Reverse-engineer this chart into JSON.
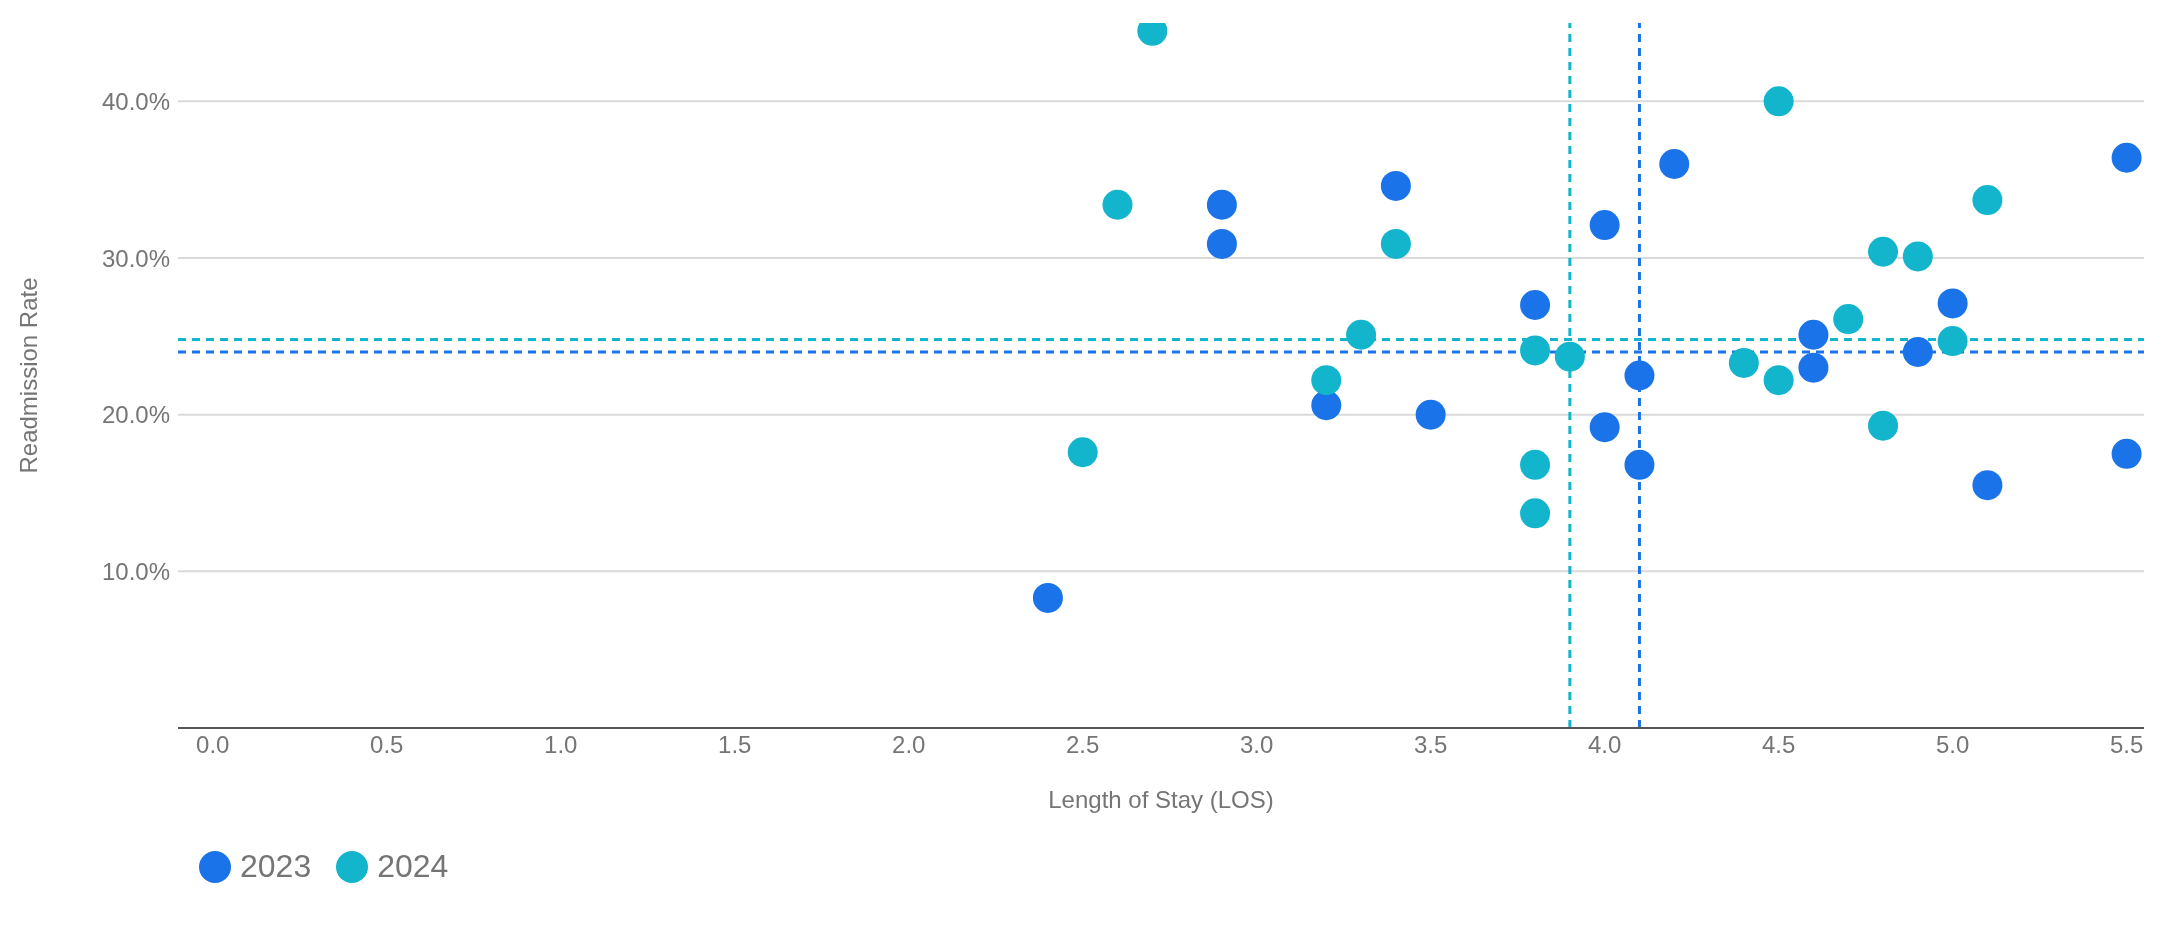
{
  "chart_data": {
    "type": "scatter",
    "xlabel": "Length of Stay (LOS)",
    "ylabel": "Readmission Rate",
    "series": [
      {
        "name": "2023",
        "color": "#1a73e8",
        "x": [
          2.4,
          2.9,
          2.9,
          3.2,
          3.4,
          3.5,
          3.8,
          4.0,
          4.0,
          4.1,
          4.1,
          4.2,
          4.6,
          4.6,
          4.9,
          5.0,
          5.1,
          5.5,
          5.5
        ],
        "values": [
          8.3,
          33.4,
          30.9,
          20.6,
          34.6,
          20.0,
          27.0,
          32.1,
          19.2,
          22.5,
          16.8,
          36.0,
          25.1,
          23.0,
          24.0,
          27.1,
          15.5,
          36.4,
          17.5
        ]
      },
      {
        "name": "2024",
        "color": "#12b5cb",
        "x": [
          2.5,
          2.6,
          2.7,
          3.2,
          3.3,
          3.4,
          3.8,
          3.8,
          3.8,
          3.9,
          4.4,
          4.5,
          4.5,
          4.7,
          4.8,
          4.8,
          4.9,
          5.0,
          5.1
        ],
        "values": [
          17.6,
          33.4,
          44.5,
          22.2,
          25.1,
          30.9,
          24.1,
          16.8,
          13.7,
          23.7,
          23.3,
          40.0,
          22.2,
          26.1,
          30.4,
          19.3,
          30.1,
          24.7,
          33.7
        ]
      }
    ],
    "xlim": [
      -0.1,
      5.55
    ],
    "xticks": [
      {
        "value": 0,
        "label": "0.0"
      },
      0.5,
      {
        "value": 1,
        "label": "1.0"
      },
      1.5,
      {
        "value": 2,
        "label": "2.0"
      },
      2.5,
      {
        "value": 3,
        "label": "3.0"
      },
      3.5,
      {
        "value": 4,
        "label": "4.0"
      },
      4.5,
      {
        "value": 5,
        "label": "5.0"
      },
      5.5
    ],
    "ylim": [
      0,
      45
    ],
    "yticks": [
      {
        "value": 10,
        "label": "10.0%"
      },
      {
        "value": 20,
        "label": "20.0%"
      },
      {
        "value": 30,
        "label": "30.0%"
      },
      {
        "value": 40,
        "label": "40.0%"
      }
    ],
    "ref_lines": [
      {
        "axis": "y",
        "value": 24.8,
        "color": "#12b5cb",
        "line_style": "dashed"
      },
      {
        "axis": "y",
        "value": 24.0,
        "color": "#1a73e8",
        "line_style": "dashed"
      },
      {
        "axis": "x",
        "value": 3.9,
        "color": "#12b5cb",
        "line_style": "dashed"
      },
      {
        "axis": "x",
        "value": 4.1,
        "color": "#1a73e8",
        "line_style": "dashed"
      }
    ],
    "grid": "y",
    "legend": "bottom left",
    "marker": "circle"
  }
}
